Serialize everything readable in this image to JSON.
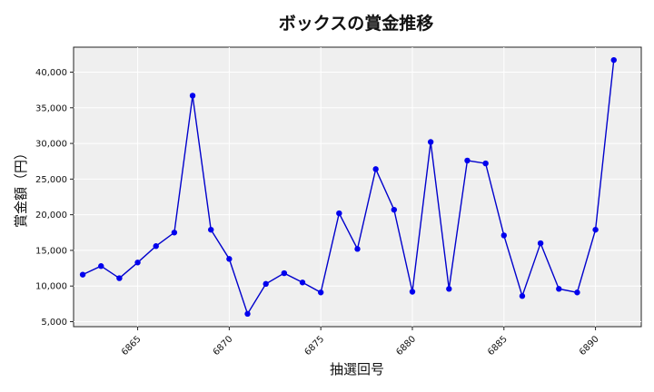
{
  "chart_data": {
    "type": "line",
    "title": "ボックスの賞金推移",
    "xlabel": "抽選回号",
    "ylabel": "賞金額（円）",
    "xlim": [
      6861.5,
      6892.5
    ],
    "ylim": [
      4300,
      43500
    ],
    "x_ticks": [
      6865,
      6870,
      6875,
      6880,
      6885,
      6890
    ],
    "y_ticks": [
      5000,
      10000,
      15000,
      20000,
      25000,
      30000,
      35000,
      40000
    ],
    "y_tick_labels": [
      "5,000",
      "10,000",
      "15,000",
      "20,000",
      "25,000",
      "30,000",
      "35,000",
      "40,000"
    ],
    "grid": true,
    "series": [
      {
        "color": "#0000cc",
        "x": [
          6862,
          6863,
          6864,
          6865,
          6866,
          6867,
          6868,
          6869,
          6870,
          6871,
          6872,
          6873,
          6874,
          6875,
          6876,
          6877,
          6878,
          6879,
          6880,
          6881,
          6882,
          6883,
          6884,
          6885,
          6886,
          6887,
          6888,
          6889,
          6890,
          6891
        ],
        "y": [
          11600,
          12800,
          11100,
          13300,
          15600,
          17500,
          36700,
          17900,
          13800,
          6100,
          10300,
          11800,
          10500,
          9100,
          20200,
          15200,
          26400,
          20700,
          9200,
          30200,
          9600,
          27600,
          27200,
          17100,
          8600,
          16000,
          9600,
          9100,
          17900,
          41700
        ]
      }
    ]
  }
}
